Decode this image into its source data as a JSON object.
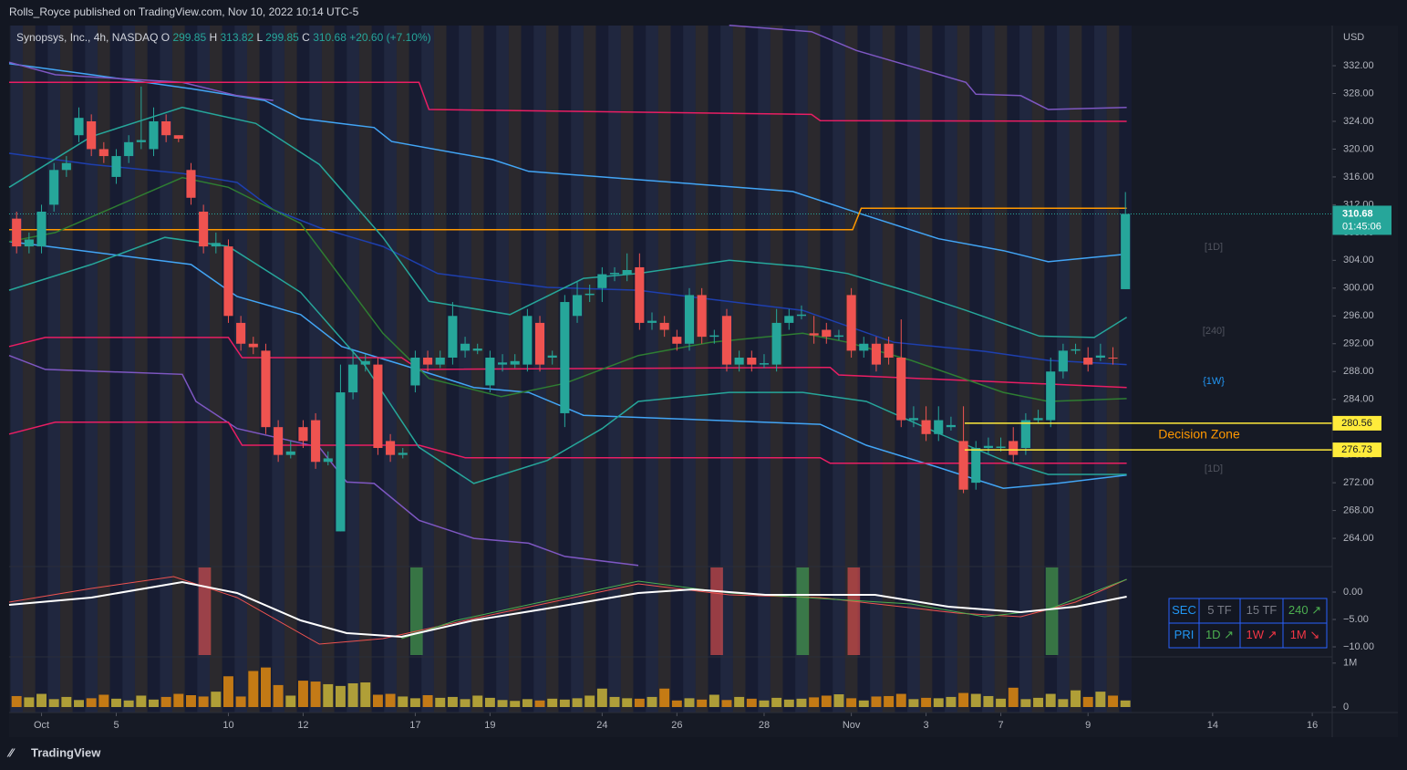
{
  "header": {
    "publisher": "Rolls_Royce published on TradingView.com, Nov 10, 2022 10:14 UTC-5",
    "footer": "TradingView"
  },
  "chart_data": {
    "type": "candlestick",
    "title": "Synopsys, Inc., 4h, NASDAQ",
    "ohlc_labels": [
      "O",
      "H",
      "L",
      "C"
    ],
    "change": {
      "value": 20.6,
      "label": "+20.60"
    },
    "change_pct": {
      "value": 7.1,
      "label": "(+7.10%)"
    },
    "currency": "USD",
    "countdown": "01:45:06",
    "up_color": "#26a69a",
    "down_color": "#ef5350",
    "open": [
      310,
      306,
      306,
      312,
      317,
      322,
      324,
      320,
      316,
      319,
      321,
      320,
      324,
      322,
      317,
      311,
      306,
      306,
      295,
      292,
      291,
      280,
      276,
      280,
      281,
      275,
      265,
      285,
      289,
      289,
      278,
      276,
      286,
      290,
      289,
      290,
      291,
      291,
      286,
      289,
      289,
      289,
      295,
      290,
      282,
      296,
      299,
      300,
      302,
      302,
      303,
      295,
      295,
      293,
      292,
      299,
      293,
      296,
      289,
      290,
      289,
      289,
      295,
      296,
      293.5,
      294,
      293,
      299,
      291,
      292,
      292,
      290,
      281,
      281,
      279,
      280,
      278,
      272,
      277,
      277,
      278,
      277,
      281,
      281,
      288,
      291,
      290,
      290,
      290,
      299.85
    ],
    "high": [
      311,
      308,
      312,
      318,
      319,
      326,
      325,
      321,
      320,
      322,
      329,
      326,
      325,
      322,
      318,
      312,
      308,
      307,
      296,
      293,
      292,
      281,
      278,
      281,
      282,
      276.5,
      289,
      291,
      290.5,
      290,
      279,
      277,
      291,
      291,
      291,
      298,
      293,
      292,
      291,
      290.5,
      290.5,
      297,
      296,
      291,
      299,
      301,
      300.5,
      303,
      303,
      305,
      305,
      296.5,
      296,
      294,
      300,
      300,
      294,
      297,
      291,
      291,
      290.5,
      297,
      297,
      297.5,
      296,
      295,
      294,
      300,
      293,
      293,
      293,
      295.5,
      283,
      283,
      283,
      281.5,
      283,
      278,
      278.5,
      278.5,
      280,
      282,
      282.5,
      290,
      292,
      292,
      291.5,
      292,
      291.5,
      313.82
    ],
    "low": [
      305,
      305,
      305,
      311,
      316,
      321,
      319,
      318,
      315,
      318,
      320,
      319,
      321,
      321,
      312,
      305,
      305,
      295,
      291,
      290.5,
      279,
      275,
      275.5,
      277,
      274,
      274.5,
      265,
      284,
      288,
      276,
      275,
      275.5,
      285,
      288,
      288.5,
      289,
      290,
      290.5,
      285,
      288,
      288.5,
      288,
      288,
      289,
      280,
      295,
      298,
      298,
      301,
      301,
      294,
      294,
      293,
      291,
      291,
      292,
      292,
      288,
      288,
      288,
      288.5,
      288,
      294,
      295.5,
      292,
      292,
      292.5,
      290,
      290,
      288,
      289,
      280,
      280,
      278,
      278,
      279.5,
      270.5,
      271,
      276,
      276.5,
      275,
      276,
      280.5,
      280,
      287,
      290.5,
      288,
      289.5,
      289,
      299.85
    ],
    "close": [
      306,
      307,
      311,
      317,
      318,
      324.5,
      320,
      319,
      319,
      321,
      321.3,
      324,
      322,
      321.5,
      313,
      306,
      306.5,
      296,
      292,
      291.5,
      280,
      276,
      276.5,
      278,
      275,
      275.5,
      285,
      289,
      289.5,
      277,
      276,
      276.3,
      290,
      289,
      290,
      296,
      292,
      291.3,
      290,
      289.3,
      289.5,
      296,
      289,
      290.3,
      298,
      299,
      299.2,
      302,
      302.2,
      302.6,
      295,
      295.3,
      294,
      292,
      299,
      293,
      293.2,
      289,
      290,
      289,
      289.2,
      295,
      296,
      296.2,
      293.2,
      293,
      293.2,
      291,
      292,
      289,
      290,
      281,
      281.3,
      279,
      281,
      280.3,
      271,
      277,
      277.3,
      277.2,
      276,
      281,
      281.3,
      288,
      291,
      291.2,
      289,
      290.3,
      289.9,
      310.68
    ],
    "xlim": [
      -0.6,
      105.6
    ],
    "xticks": [
      {
        "value": 2,
        "label": "Oct"
      },
      {
        "value": 8,
        "label": "5"
      },
      {
        "value": 17,
        "label": "10"
      },
      {
        "value": 23,
        "label": "12"
      },
      {
        "value": 32,
        "label": "17"
      },
      {
        "value": 38,
        "label": "19"
      },
      {
        "value": 47,
        "label": "24"
      },
      {
        "value": 53,
        "label": "26"
      },
      {
        "value": 60,
        "label": "28"
      },
      {
        "value": 67,
        "label": "Nov"
      },
      {
        "value": 73,
        "label": "3"
      },
      {
        "value": 79,
        "label": "7"
      },
      {
        "value": 86,
        "label": "9"
      },
      {
        "value": 96,
        "label": "14"
      },
      {
        "value": 104,
        "label": "16"
      }
    ],
    "ylim": [
      260.07,
      337.78
    ],
    "yticks": [
      {
        "value": 264,
        "label": "264.00"
      },
      {
        "value": 268,
        "label": "268.00"
      },
      {
        "value": 272,
        "label": "272.00"
      },
      {
        "value": 276,
        "label": "276.00"
      },
      {
        "value": 280,
        "label": "280.00"
      },
      {
        "value": 284,
        "label": "284.00"
      },
      {
        "value": 288,
        "label": "288.00"
      },
      {
        "value": 292,
        "label": "292.00"
      },
      {
        "value": 296,
        "label": "296.00"
      },
      {
        "value": 300,
        "label": "300.00"
      },
      {
        "value": 304,
        "label": "304.00"
      },
      {
        "value": 308,
        "label": "308.00"
      },
      {
        "value": 312,
        "label": "312.00"
      },
      {
        "value": 316,
        "label": "316.00"
      },
      {
        "value": 320,
        "label": "320.00"
      },
      {
        "value": 324,
        "label": "324.00"
      },
      {
        "value": 328,
        "label": "328.00"
      },
      {
        "value": 332,
        "label": "332.00"
      }
    ],
    "lines": [
      {
        "color": "#42a5f5",
        "x": [
          -0.6,
          6.0,
          14.0,
          19.9,
          22.8,
          28.7,
          30.1,
          38.2,
          41.1,
          62.3,
          67.4,
          74.0,
          79.2,
          82.8,
          89.1
        ],
        "values": [
          332.3,
          330.7,
          328.7,
          327.0,
          324.4,
          323.1,
          321.1,
          318.5,
          316.8,
          313.9,
          310.9,
          307.1,
          305.4,
          303.8,
          304.9
        ]
      },
      {
        "color": "#1e3fae",
        "x": [
          -0.6,
          6.0,
          13.3,
          17.7,
          20.6,
          24.3,
          29.4,
          33.8,
          42.6,
          49.9,
          55.7,
          63.1,
          70.4,
          77.7,
          82.8,
          89.1
        ],
        "values": [
          319.4,
          317.8,
          316.5,
          315.2,
          311.3,
          308.7,
          306.0,
          302.1,
          300.1,
          299.7,
          298.4,
          296.8,
          292.2,
          290.9,
          289.6,
          289.0
        ]
      },
      {
        "color": "#42a5f5",
        "x": [
          -0.6,
          14.0,
          17.7,
          22.8,
          26.1,
          30.9,
          36.7,
          41.1,
          45.5,
          64.5,
          68.2,
          74.0,
          79.2,
          83.5,
          89.1
        ],
        "values": [
          306.7,
          303.4,
          298.8,
          296.2,
          291.6,
          289.0,
          285.7,
          285.0,
          281.7,
          280.4,
          277.4,
          274.2,
          271.2,
          271.9,
          273.1
        ]
      },
      {
        "color": "#7e57c2",
        "x": [
          -0.6,
          3.1,
          13.3,
          17.7,
          20.6,
          22.0,
          57.2,
          63.8,
          67.4,
          76.2,
          77.0,
          80.6,
          82.8,
          89.1
        ],
        "values": [
          332.5,
          330.7,
          329.6,
          327.7,
          327.0,
          null,
          337.8,
          336.9,
          334.2,
          329.6,
          327.9,
          327.7,
          325.7,
          326.0
        ]
      },
      {
        "color": "#7e57c2",
        "x": [
          -0.6,
          2.3,
          13.3,
          14.4,
          17.7,
          24.3,
          26.5,
          28.7,
          32.3,
          36.7,
          41.1,
          44.0,
          49.9
        ],
        "values": [
          290.3,
          288.3,
          287.6,
          283.7,
          279.8,
          277.1,
          272.1,
          271.9,
          266.6,
          264.0,
          263.3,
          261.4,
          260.1
        ]
      },
      {
        "color": "#e91e63",
        "x": [
          -0.6,
          32.3,
          33.1,
          63.8,
          64.5,
          89.1
        ],
        "values": [
          329.6,
          329.6,
          325.7,
          325.0,
          324.1,
          324.0
        ]
      },
      {
        "color": "#e91e63",
        "x": [
          -0.6,
          2.3,
          17.0,
          18.1,
          30.9,
          32.3,
          65.3,
          66.0,
          89.1
        ],
        "values": [
          291.6,
          292.9,
          292.9,
          290.0,
          290.0,
          288.3,
          288.6,
          287.5,
          285.7
        ]
      },
      {
        "color": "#e91e63",
        "x": [
          -0.6,
          3.1,
          17.0,
          18.1,
          32.3,
          36.0,
          64.5,
          65.3,
          89.1
        ],
        "values": [
          279.0,
          280.7,
          280.7,
          277.4,
          277.4,
          275.6,
          275.6,
          274.8,
          274.8
        ]
      },
      {
        "color": "#ff9800",
        "x": [
          -0.6,
          67.1,
          67.8,
          89.1
        ],
        "values": [
          308.4,
          308.4,
          311.5,
          311.5
        ]
      },
      {
        "color": "#2e7d32",
        "x": [
          -0.6,
          3.1,
          13.3,
          17.0,
          22.8,
          29.4,
          33.1,
          38.9,
          44.0,
          49.9,
          55.7,
          63.1,
          66.7,
          71.8,
          79.2,
          82.8,
          89.1
        ],
        "values": [
          306.7,
          308.0,
          315.9,
          314.5,
          309.3,
          293.5,
          287.0,
          284.4,
          286.3,
          290.3,
          292.2,
          293.5,
          292.2,
          289.6,
          285.0,
          283.7,
          284.1
        ]
      },
      {
        "color": "#26a69a",
        "x": [
          -0.6,
          6.0,
          13.3,
          19.2,
          24.3,
          29.4,
          33.1,
          39.6,
          45.5,
          49.9,
          57.2,
          63.1,
          66.7,
          71.8,
          76.2,
          82.1,
          86.5,
          89.1
        ],
        "values": [
          314.5,
          321.8,
          326.0,
          323.7,
          317.8,
          307.3,
          298.1,
          296.2,
          301.4,
          302.1,
          304.0,
          303.1,
          302.1,
          299.4,
          296.8,
          293.1,
          292.9,
          295.8
        ]
      },
      {
        "color": "#26a69a",
        "x": [
          -0.6,
          6.0,
          11.9,
          17.0,
          22.8,
          27.9,
          32.3,
          36.7,
          42.6,
          47.0,
          49.9,
          57.2,
          63.1,
          68.2,
          74.0,
          79.2,
          82.8,
          89.1
        ],
        "values": [
          299.7,
          303.4,
          307.3,
          306.0,
          299.4,
          289.0,
          277.1,
          271.9,
          275.2,
          279.8,
          283.7,
          285.0,
          285.0,
          283.7,
          279.1,
          275.2,
          273.2,
          273.2
        ]
      }
    ],
    "levels": {
      "color": "#ffeb3b",
      "values": [
        280.56,
        276.73
      ]
    },
    "annotations": [
      {
        "text": "Decision Zone",
        "color": "#ff9800"
      },
      {
        "text": "[1D]",
        "color": "#50535e"
      },
      {
        "text": "[240]",
        "color": "#50535e"
      },
      {
        "text": "{1W}",
        "color": "#2196f3"
      },
      {
        "text": "[1D]",
        "color": "#50535e"
      }
    ],
    "oscillator": {
      "ylim": [
        -11.5,
        4.5
      ],
      "yticks": [
        {
          "value": 0,
          "label": "0.00"
        },
        {
          "value": -5,
          "label": "−5.00"
        },
        {
          "value": -10,
          "label": "−10.00"
        }
      ],
      "lines": [
        {
          "color": "#ef5350",
          "width": 1,
          "x": [
            -0.6,
            6.0,
            12.6,
            17.7,
            24.3,
            29.4,
            36.7,
            49.9,
            57.2,
            64.5,
            75.5,
            80.6,
            85.0,
            89.1
          ],
          "values": [
            -1.83,
            0.67,
            2.83,
            -1.0,
            -9.5,
            -8.5,
            -4.83,
            1.5,
            -0.5,
            -1.0,
            -3.83,
            -4.5,
            -1.83,
            2.33
          ]
        },
        {
          "color": "#4caf50",
          "width": 1,
          "x": [
            30.9,
            35.3,
            49.9,
            57.2,
            71.8,
            77.7,
            82.8,
            89.1
          ],
          "values": [
            -8.5,
            -5.17,
            2.0,
            -0.17,
            -2.17,
            -4.5,
            -3.17,
            2.33
          ]
        },
        {
          "color": "#ffffff",
          "width": 2,
          "x": [
            -0.6,
            6.0,
            13.3,
            17.7,
            22.8,
            26.5,
            30.9,
            36.7,
            42.6,
            49.9,
            54.3,
            60.1,
            68.9,
            74.8,
            80.6,
            85.0,
            89.1
          ],
          "values": [
            -2.33,
            -1.0,
            1.83,
            -0.17,
            -5.17,
            -7.5,
            -8.17,
            -5.17,
            -3.0,
            -0.17,
            0.5,
            -0.5,
            -0.5,
            -2.67,
            -3.67,
            -2.67,
            -0.83
          ]
        }
      ],
      "bull_signals": [
        32.1,
        63.1,
        83.1
      ],
      "bear_signals": [
        15.1,
        56.2,
        67.2
      ],
      "bull_color": "#4caf50",
      "bear_color": "#ef5350"
    },
    "volume": {
      "ylim": [
        0,
        1100000
      ],
      "yticks": [
        {
          "value": 1000000,
          "label": "1M"
        },
        0
      ],
      "up_color": "#c8b43a",
      "down_color": "#e08a10",
      "values": [
        250000,
        220000,
        300000,
        180000,
        230000,
        160000,
        200000,
        280000,
        190000,
        150000,
        260000,
        170000,
        230000,
        300000,
        270000,
        240000,
        350000,
        700000,
        240000,
        820000,
        900000,
        500000,
        260000,
        600000,
        580000,
        520000,
        480000,
        540000,
        560000,
        280000,
        300000,
        240000,
        200000,
        270000,
        210000,
        230000,
        180000,
        260000,
        210000,
        160000,
        140000,
        180000,
        150000,
        190000,
        170000,
        200000,
        260000,
        420000,
        230000,
        200000,
        190000,
        230000,
        420000,
        150000,
        200000,
        170000,
        280000,
        160000,
        230000,
        190000,
        150000,
        210000,
        170000,
        190000,
        220000,
        260000,
        290000,
        200000,
        150000,
        240000,
        250000,
        300000,
        180000,
        210000,
        200000,
        230000,
        320000,
        300000,
        250000,
        190000,
        440000,
        180000,
        210000,
        300000,
        180000,
        380000,
        230000,
        350000,
        260000,
        150000
      ]
    }
  },
  "table": {
    "rows": [
      [
        "SEC",
        "5 TF",
        "15 TF",
        "240 ↗"
      ],
      [
        "PRI",
        "1D ↗",
        "1W ↗",
        "1M ↘"
      ]
    ],
    "colors": [
      [
        "#2196f3",
        "#787b86",
        "#787b86",
        "#4caf50"
      ],
      [
        "#2196f3",
        "#4caf50",
        "#f23645",
        "#f23645"
      ]
    ]
  }
}
